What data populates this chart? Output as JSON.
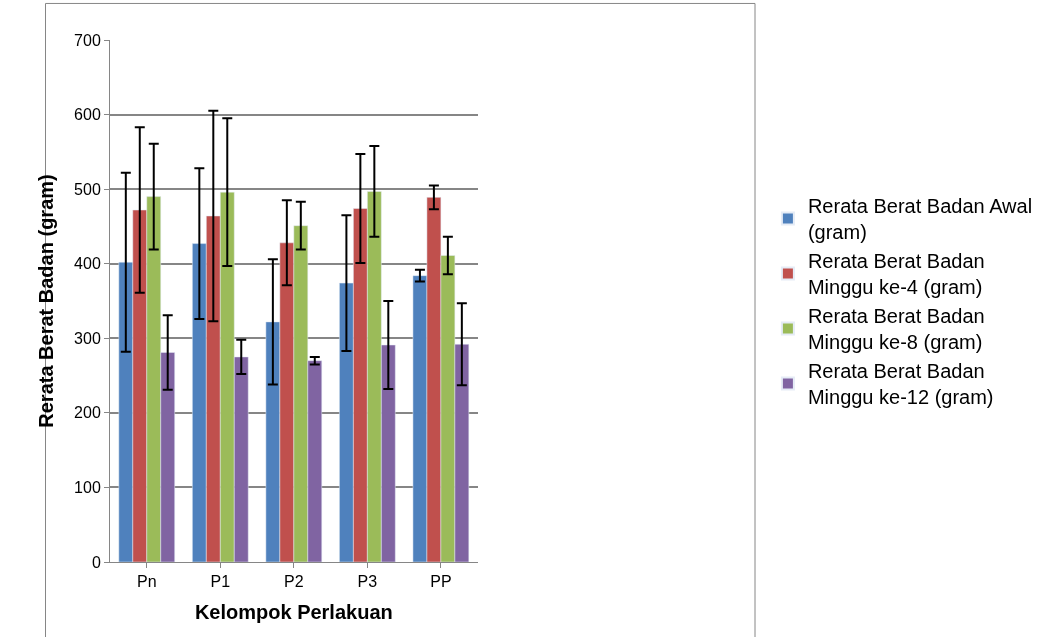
{
  "chart_data": {
    "type": "bar",
    "xlabel": "Kelompok Perlakuan",
    "ylabel": "Rerata Berat Badan (gram)",
    "categories": [
      "Pn",
      "P1",
      "P2",
      "P3",
      "PP"
    ],
    "series": [
      {
        "name": "Rerata Berat Badan Awal (gram)",
        "color": "#4f81bd",
        "values": [
          402,
          427,
          322,
          374,
          384
        ],
        "errors": [
          120,
          101,
          84,
          91,
          8
        ]
      },
      {
        "name": "Rerata Berat Badan Minggu ke-4 (gram)",
        "color": "#c0504d",
        "values": [
          472,
          464,
          428,
          474,
          489
        ],
        "errors": [
          111,
          141,
          57,
          73,
          16
        ]
      },
      {
        "name": "Rerata Berat Badan Minggu ke-8 (gram)",
        "color": "#9bbb59",
        "values": [
          490,
          496,
          451,
          497,
          411
        ],
        "errors": [
          71,
          99,
          32,
          61,
          25
        ]
      },
      {
        "name": "Rerata Berat Badan Minggu ke-12 (gram)",
        "color": "#8064a2",
        "values": [
          281,
          275,
          270,
          291,
          292
        ],
        "errors": [
          50,
          23,
          5,
          59,
          55
        ]
      }
    ],
    "ylim": [
      0,
      700
    ],
    "yticks": [
      0,
      100,
      200,
      300,
      400,
      500,
      600,
      700
    ],
    "grid": "y",
    "legend": "right"
  }
}
